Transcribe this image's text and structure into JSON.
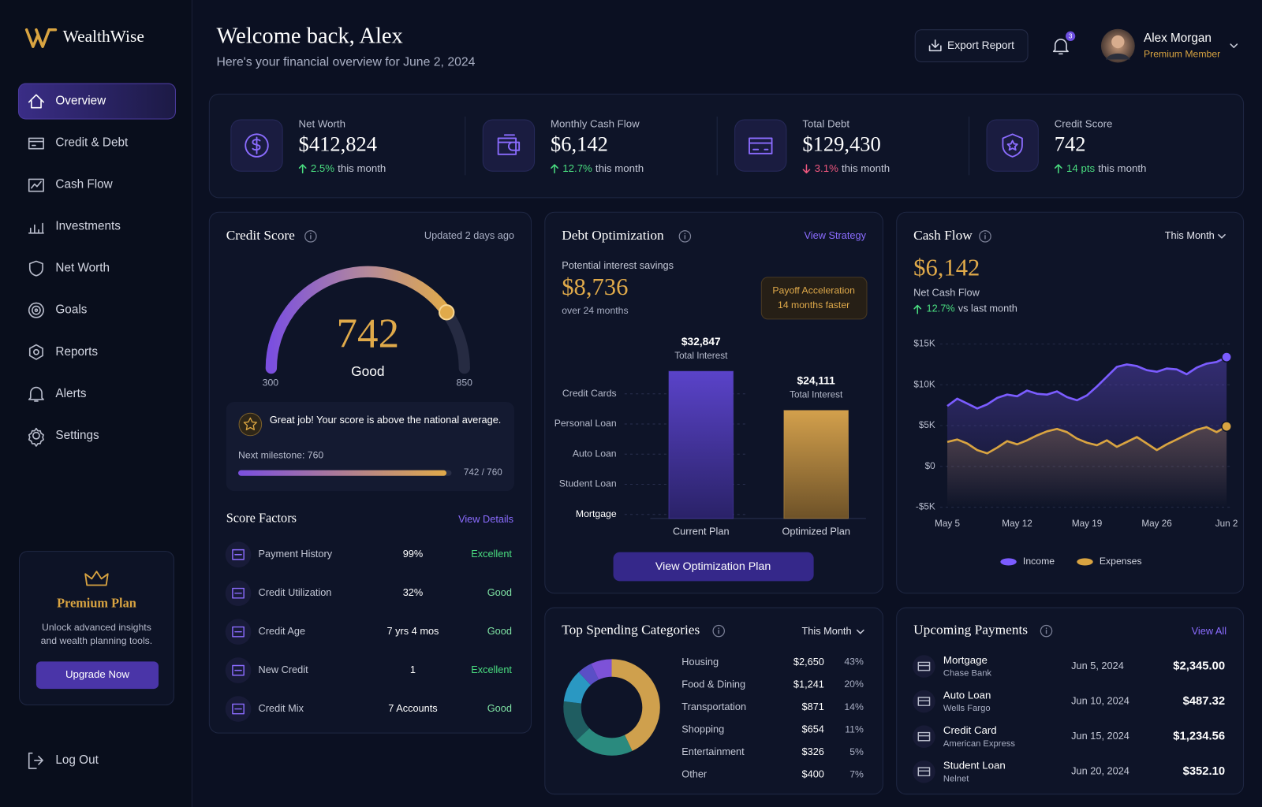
{
  "brand": "WealthWise",
  "nav": [
    "Overview",
    "Credit & Debt",
    "Cash Flow",
    "Investments",
    "Net Worth",
    "Goals",
    "Reports",
    "Alerts",
    "Settings"
  ],
  "premium": {
    "title": "Premium Plan",
    "text": [
      "Unlock advanced insights",
      "and wealth planning tools."
    ],
    "button": "Upgrade Now"
  },
  "logout": "Log Out",
  "header": {
    "title": "Welcome back, Alex",
    "subtitle": "Here's your financial overview for June 2, 2024",
    "export": "Export Report",
    "notifications": 3,
    "user": "Alex Morgan",
    "membership": "Premium Member"
  },
  "kpis": [
    {
      "label": "Net Worth",
      "value": "$412,824",
      "change": "2.5%",
      "period": "this month",
      "direction": "up"
    },
    {
      "label": "Monthly Cash Flow",
      "value": "$6,142",
      "change": "12.7%",
      "period": "this month",
      "direction": "up"
    },
    {
      "label": "Total Debt",
      "value": "$129,430",
      "change": "3.1%",
      "period": "this month",
      "direction": "down"
    },
    {
      "label": "Credit Score",
      "value": "742",
      "change": "14 pts",
      "period": "this month",
      "direction": "up"
    }
  ],
  "credit_score": {
    "title": "Credit Score",
    "updated": "Updated 2 days ago",
    "score": 742,
    "rating": "Good",
    "min": 300,
    "max": 850,
    "message": "Great job! Your score is above the national average.",
    "milestone_label": "Next milestone: 760",
    "milestone": 760,
    "progress_label": "742 / 760"
  },
  "score_factors": {
    "title": "Score Factors",
    "link": "View Details",
    "rows": [
      {
        "name": "Payment History",
        "value": "99%",
        "rating": "Excellent"
      },
      {
        "name": "Credit Utilization",
        "value": "32%",
        "rating": "Good"
      },
      {
        "name": "Credit Age",
        "value": "7 yrs 4 mos",
        "rating": "Good"
      },
      {
        "name": "New Credit",
        "value": "1",
        "rating": "Excellent"
      },
      {
        "name": "Credit Mix",
        "value": "7 Accounts",
        "rating": "Good"
      }
    ]
  },
  "debt": {
    "title": "Debt Optimization",
    "link": "View Strategy",
    "savings_label": "Potential interest savings",
    "savings": "$8,736",
    "savings_period": "over 24 months",
    "badge_title": "Payoff Acceleration",
    "badge_text": "14 months faster",
    "button": "View Optimization Plan",
    "chart": {
      "type": "bar",
      "categories": [
        "Current Plan",
        "Optimized Plan"
      ],
      "values": [
        32847,
        24111
      ],
      "value_labels": [
        "$32,847",
        "$24,111"
      ],
      "value_sublabel": "Total Interest",
      "colors": [
        "#5a43c9",
        "#d3a04c"
      ],
      "ylim": [
        0,
        40000
      ],
      "debt_types": [
        "Credit Cards",
        "Personal Loan",
        "Auto Loan",
        "Student Loan",
        "Mortgage"
      ]
    }
  },
  "cash_flow": {
    "title": "Cash Flow",
    "period": "This Month",
    "value": "$6,142",
    "label": "Net Cash Flow",
    "change": "12.7%",
    "change_text": "vs last month",
    "chart": {
      "type": "line",
      "categories": [
        "May 5",
        null,
        null,
        null,
        null,
        null,
        null,
        "May 12",
        null,
        null,
        null,
        null,
        null,
        null,
        "May 19",
        null,
        null,
        null,
        null,
        null,
        null,
        "May 26",
        null,
        null,
        null,
        null,
        null,
        null,
        "Jun 2"
      ],
      "series": [
        {
          "name": "Income",
          "color": "#7b5cff",
          "values": [
            7400,
            8300,
            7700,
            7100,
            7600,
            8400,
            8800,
            8600,
            9300,
            8900,
            8800,
            9200,
            8500,
            8100,
            8700,
            9800,
            11000,
            12200,
            12500,
            12300,
            11800,
            11600,
            12000,
            11900,
            11300,
            12100,
            12600,
            12800,
            13400
          ]
        },
        {
          "name": "Expenses",
          "color": "#d9a441",
          "values": [
            3000,
            3300,
            2800,
            2000,
            1600,
            2300,
            3100,
            2700,
            3200,
            3800,
            4300,
            4600,
            4200,
            3400,
            2900,
            2600,
            3200,
            2400,
            3000,
            3600,
            2800,
            2000,
            2700,
            3300,
            3900,
            4500,
            4800,
            4200,
            4900
          ]
        }
      ],
      "ylim": [
        -5000,
        15000
      ],
      "yticks": [
        {
          "value": 15000,
          "label": "$15K"
        },
        {
          "value": 10000,
          "label": "$10K"
        },
        {
          "value": 5000,
          "label": "$5K"
        },
        {
          "value": 0,
          "label": "$0"
        },
        {
          "value": -5000,
          "label": "-$5K"
        }
      ],
      "grid": true
    }
  },
  "spending": {
    "title": "Top Spending Categories",
    "period": "This Month",
    "chart": {
      "type": "pie",
      "categories": [
        "Housing",
        "Food & Dining",
        "Transportation",
        "Shopping",
        "Entertainment",
        "Other"
      ],
      "amounts": [
        "$2,650",
        "$1,241",
        "$871",
        "$654",
        "$326",
        "$400"
      ],
      "values": [
        43,
        20,
        14,
        11,
        5,
        7
      ],
      "value_labels": [
        "43%",
        "20%",
        "14%",
        "11%",
        "5%",
        "7%"
      ],
      "colors": [
        "#cfa04d",
        "#2a8a7e",
        "#1f5d61",
        "#2a98c2",
        "#5a4fc6",
        "#7d52d8"
      ]
    }
  },
  "payments": {
    "title": "Upcoming Payments",
    "link": "View All",
    "items": [
      {
        "name": "Mortgage",
        "lender": "Chase Bank",
        "date": "Jun 5, 2024",
        "amount": "$2,345.00"
      },
      {
        "name": "Auto Loan",
        "lender": "Wells Fargo",
        "date": "Jun 10, 2024",
        "amount": "$487.32"
      },
      {
        "name": "Credit Card",
        "lender": "American Express",
        "date": "Jun 15, 2024",
        "amount": "$1,234.56"
      },
      {
        "name": "Student Loan",
        "lender": "Nelnet",
        "date": "Jun 20, 2024",
        "amount": "$352.10"
      }
    ]
  }
}
